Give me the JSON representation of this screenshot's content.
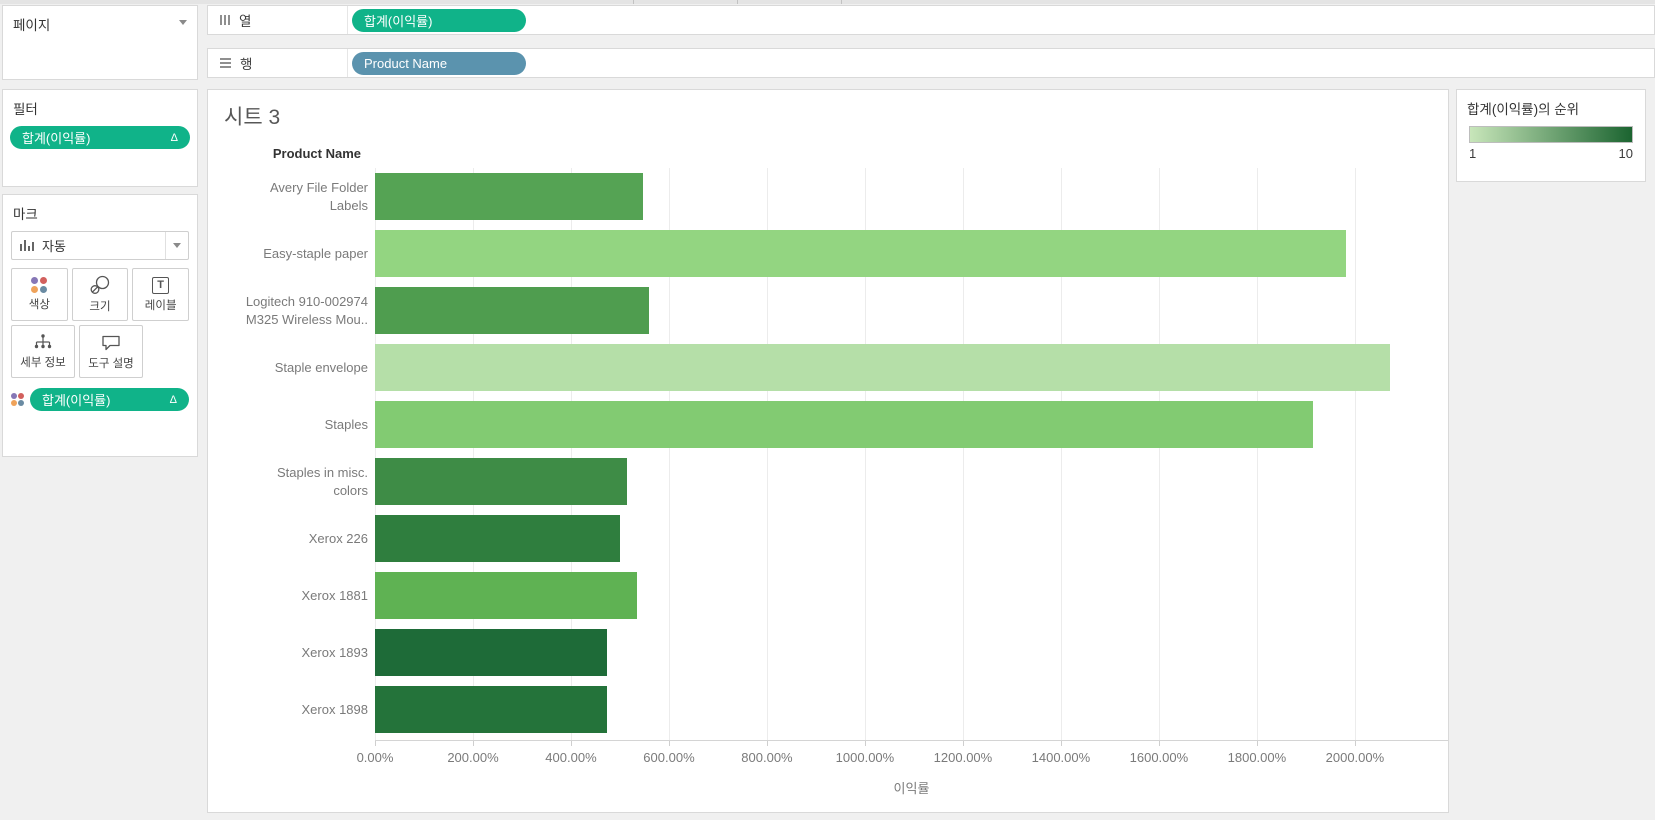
{
  "colors": {
    "pill_green": "#10b389",
    "pill_blue": "#5b93ae",
    "legend_gradient_start": "#c8e6ba",
    "legend_gradient_end": "#1b6430"
  },
  "pages_card": {
    "title": "페이지"
  },
  "shelves": {
    "columns": {
      "label": "열",
      "pill": "합계(이익률)"
    },
    "rows": {
      "label": "행",
      "pill": "Product Name"
    }
  },
  "filters_card": {
    "title": "필터",
    "pill": "합계(이익률)",
    "badge": "Δ"
  },
  "marks_card": {
    "title": "마크",
    "mark_type": "자동",
    "buttons": {
      "color": "색상",
      "size": "크기",
      "label": "레이블",
      "detail": "세부 정보",
      "tooltip": "도구 설명"
    },
    "pill": "합계(이익률)",
    "badge": "Δ"
  },
  "sheet": {
    "title": "시트 3",
    "row_header": "Product Name",
    "x_axis_title": "이익률"
  },
  "legend": {
    "title": "합계(이익률)의 순위",
    "min_label": "1",
    "max_label": "10"
  },
  "chart_data": {
    "type": "bar",
    "orientation": "horizontal",
    "title": "시트 3",
    "xlabel": "이익률",
    "ylabel": "Product Name",
    "categories": [
      "Avery File Folder Labels",
      "Easy-staple paper",
      "Logitech 910-002974 M325 Wireless Mou..",
      "Staple envelope",
      "Staples",
      "Staples in misc. colors",
      "Xerox 226",
      "Xerox 1881",
      "Xerox 1893",
      "Xerox 1898"
    ],
    "category_label_lines": [
      [
        "Avery File Folder",
        "Labels"
      ],
      [
        "Easy-staple paper"
      ],
      [
        "Logitech 910-002974",
        "M325 Wireless Mou.."
      ],
      [
        "Staple envelope"
      ],
      [
        "Staples"
      ],
      [
        "Staples in misc.",
        "colors"
      ],
      [
        "Xerox 226"
      ],
      [
        "Xerox 1881"
      ],
      [
        "Xerox 1893"
      ],
      [
        "Xerox 1898"
      ]
    ],
    "values_pct": [
      548,
      1982,
      560,
      2072,
      1914,
      514,
      500,
      535,
      474,
      474
    ],
    "bar_colors": [
      "#55a354",
      "#93d581",
      "#4f9d4f",
      "#b5dfa8",
      "#82cb72",
      "#3e8c46",
      "#2f7e3e",
      "#5fb253",
      "#1e6b38",
      "#24733a"
    ],
    "color_legend": "합계(이익률)의 순위 1(밝음)–10(어두움)",
    "x_ticks": [
      "0.00%",
      "200.00%",
      "400.00%",
      "600.00%",
      "800.00%",
      "1000.00%",
      "1200.00%",
      "1400.00%",
      "1600.00%",
      "1800.00%",
      "2000.00%"
    ],
    "x_tick_values": [
      0,
      200,
      400,
      600,
      800,
      1000,
      1200,
      1400,
      1600,
      1800,
      2000
    ],
    "x_axis_max": 2190,
    "grid": true,
    "legend_position": "right"
  }
}
